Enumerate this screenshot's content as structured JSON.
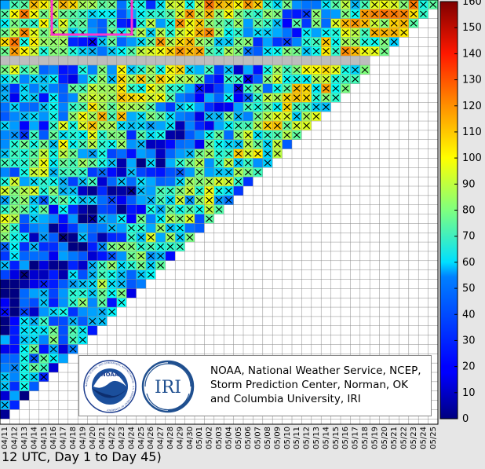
{
  "chart_data": {
    "type": "heatmap",
    "title": "",
    "xlabel": "",
    "ylabel": "",
    "x_tick_labels": [
      "04/11",
      "04/12",
      "04/13",
      "04/14",
      "04/15",
      "04/16",
      "04/17",
      "04/18",
      "04/19",
      "04/20",
      "04/21",
      "04/22",
      "04/23",
      "04/24",
      "04/25",
      "04/26",
      "04/27",
      "04/28",
      "04/29",
      "04/30",
      "05/01",
      "05/02",
      "05/03",
      "05/04",
      "05/05",
      "05/06",
      "05/07",
      "05/08",
      "05/09",
      "05/10",
      "05/11",
      "05/12",
      "05/13",
      "05/14",
      "05/15",
      "05/16",
      "05/17",
      "05/18",
      "05/19",
      "05/20",
      "05/21",
      "05/22",
      "05/23",
      "05/24",
      "05/25"
    ],
    "colorbar": {
      "min": 0,
      "max": 160,
      "ticks": [
        0,
        10,
        20,
        30,
        40,
        50,
        60,
        70,
        80,
        90,
        100,
        110,
        120,
        130,
        140,
        150,
        160
      ],
      "colormap": "jet"
    },
    "marker": "x",
    "highlight_color": "#ff33cc",
    "missing_color": "#bdbdbd"
  },
  "credit": {
    "line1": "NOAA, National Weather Service, NCEP,",
    "line2": "Storm Prediction Center, Norman, OK",
    "line3": "and Columbia University, IRI"
  },
  "logos": {
    "noaa_seal": "NOAA",
    "iri": "IRI",
    "noaa_ring": "NATIONAL OCEANIC AND ATMOSPHERIC ADMINISTRATION · U.S. DEPARTMENT OF COMMERCE"
  },
  "caption": "12 UTC, Day 1 to Day 45)"
}
